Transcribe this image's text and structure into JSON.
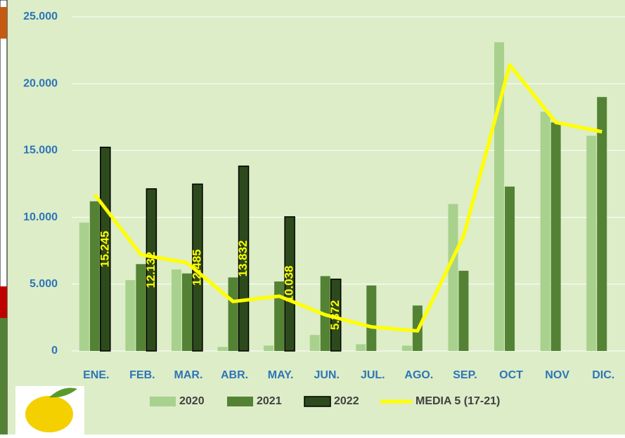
{
  "chart_data": {
    "type": "bar",
    "categories": [
      "ENE.",
      "FEB.",
      "MAR.",
      "ABR.",
      "MAY.",
      "JUN.",
      "JUL.",
      "AGO.",
      "SEP.",
      "OCT",
      "NOV",
      "DIC."
    ],
    "series": [
      {
        "name": "2020",
        "color": "#a9d18e",
        "values": [
          9600,
          5300,
          6100,
          300,
          400,
          1200,
          500,
          400,
          11000,
          23100,
          17900,
          16100
        ]
      },
      {
        "name": "2021",
        "color": "#548235",
        "values": [
          11200,
          6500,
          5800,
          5500,
          5200,
          5600,
          4900,
          3400,
          6000,
          12300,
          17100,
          19000
        ]
      },
      {
        "name": "2022",
        "color": "#2d4a1c",
        "values": [
          15245,
          12132,
          12485,
          13832,
          10038,
          5372,
          null,
          null,
          null,
          null,
          null,
          null
        ],
        "value_labels": [
          "15.245",
          "12.132",
          "12.485",
          "13.832",
          "10.038",
          "5.372",
          null,
          null,
          null,
          null,
          null,
          null
        ]
      },
      {
        "name": "MEDIA 5 (17-21)",
        "type": "line",
        "color": "#ffff00",
        "values": [
          11700,
          7200,
          6600,
          3700,
          4100,
          2700,
          1800,
          1500,
          8600,
          21400,
          17100,
          16400
        ]
      }
    ],
    "ylim": [
      0,
      25000
    ],
    "yticks": [
      {
        "value": 0,
        "label": "0"
      },
      {
        "value": 5000,
        "label": "5.000"
      },
      {
        "value": 10000,
        "label": "10.000"
      },
      {
        "value": 15000,
        "label": "15.000"
      },
      {
        "value": 20000,
        "label": "20.000"
      },
      {
        "value": 25000,
        "label": "25.000"
      }
    ]
  }
}
